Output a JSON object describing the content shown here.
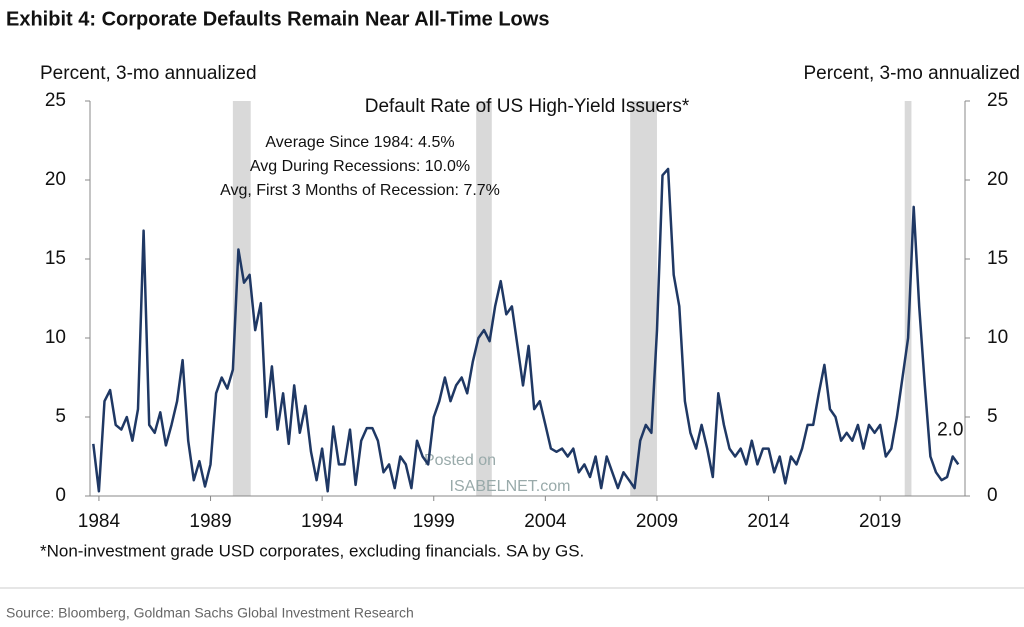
{
  "chart_data": {
    "type": "line",
    "title": "Exhibit 4: Corporate Defaults Remain Near All-Time Lows",
    "subtitle": "Default Rate of US High-Yield Issuers*",
    "y_label": "Percent, 3-mo annualized",
    "y2_label": "Percent, 3-mo annualized",
    "annotations": [
      "Average Since 1984: 4.5%",
      "Avg During Recessions: 10.0%",
      "Avg, First 3 Months of Recession: 7.7%"
    ],
    "end_label": "2.0",
    "footnote": "*Non-investment grade USD corporates, excluding financials. SA by GS.",
    "source": "Source: Bloomberg, Goldman Sachs Global Investment Research",
    "watermark": [
      "Posted on",
      "ISABELNET.com"
    ],
    "recessions": [
      [
        1990.0,
        1990.8
      ],
      [
        2000.9,
        2001.6
      ],
      [
        2007.8,
        2009.0
      ],
      [
        2020.1,
        2020.4
      ]
    ],
    "recession_color": "#d9d9d9",
    "xlim": [
      1983.6,
      2022.8
    ],
    "xticks": [
      1984,
      1989,
      1994,
      1999,
      2004,
      2009,
      2014,
      2019
    ],
    "ylim": [
      0,
      25
    ],
    "yticks": [
      0,
      5,
      10,
      15,
      20,
      25
    ],
    "y2lim": [
      0,
      25
    ],
    "y2ticks": [
      0,
      5,
      10,
      15,
      20,
      25
    ],
    "series": [
      {
        "name": "Default Rate of US High-Yield Issuers*",
        "color": "#1f3864",
        "x": [
          1983.75,
          1984.0,
          1984.25,
          1984.5,
          1984.75,
          1985.0,
          1985.25,
          1985.5,
          1985.75,
          1986.0,
          1986.25,
          1986.5,
          1986.75,
          1987.0,
          1987.25,
          1987.5,
          1987.75,
          1988.0,
          1988.25,
          1988.5,
          1988.75,
          1989.0,
          1989.25,
          1989.5,
          1989.75,
          1990.0,
          1990.25,
          1990.5,
          1990.75,
          1991.0,
          1991.25,
          1991.5,
          1991.75,
          1992.0,
          1992.25,
          1992.5,
          1992.75,
          1993.0,
          1993.25,
          1993.5,
          1993.75,
          1994.0,
          1994.25,
          1994.5,
          1994.75,
          1995.0,
          1995.25,
          1995.5,
          1995.75,
          1996.0,
          1996.25,
          1996.5,
          1996.75,
          1997.0,
          1997.25,
          1997.5,
          1997.75,
          1998.0,
          1998.25,
          1998.5,
          1998.75,
          1999.0,
          1999.25,
          1999.5,
          1999.75,
          2000.0,
          2000.25,
          2000.5,
          2000.75,
          2001.0,
          2001.25,
          2001.5,
          2001.75,
          2002.0,
          2002.25,
          2002.5,
          2002.75,
          2003.0,
          2003.25,
          2003.5,
          2003.75,
          2004.0,
          2004.25,
          2004.5,
          2004.75,
          2005.0,
          2005.25,
          2005.5,
          2005.75,
          2006.0,
          2006.25,
          2006.5,
          2006.75,
          2007.0,
          2007.25,
          2007.5,
          2007.75,
          2008.0,
          2008.25,
          2008.5,
          2008.75,
          2009.0,
          2009.25,
          2009.5,
          2009.75,
          2010.0,
          2010.25,
          2010.5,
          2010.75,
          2011.0,
          2011.25,
          2011.5,
          2011.75,
          2012.0,
          2012.25,
          2012.5,
          2012.75,
          2013.0,
          2013.25,
          2013.5,
          2013.75,
          2014.0,
          2014.25,
          2014.5,
          2014.75,
          2015.0,
          2015.25,
          2015.5,
          2015.75,
          2016.0,
          2016.25,
          2016.5,
          2016.75,
          2017.0,
          2017.25,
          2017.5,
          2017.75,
          2018.0,
          2018.25,
          2018.5,
          2018.75,
          2019.0,
          2019.25,
          2019.5,
          2019.75,
          2020.0,
          2020.25,
          2020.5,
          2020.75,
          2021.0,
          2021.25,
          2021.5,
          2021.75,
          2022.0,
          2022.25,
          2022.5
        ],
        "values": [
          3.3,
          0.3,
          6.0,
          6.7,
          4.5,
          4.2,
          5.0,
          3.5,
          5.5,
          16.8,
          4.5,
          4.0,
          5.3,
          3.2,
          4.5,
          6.0,
          8.6,
          3.5,
          1.0,
          2.2,
          0.6,
          2.0,
          6.5,
          7.5,
          6.8,
          8.0,
          15.6,
          13.5,
          14.0,
          10.5,
          12.2,
          5.0,
          8.2,
          4.2,
          6.5,
          3.3,
          7.0,
          4.0,
          5.7,
          2.8,
          1.0,
          3.0,
          0.3,
          4.4,
          2.0,
          2.0,
          4.2,
          0.7,
          3.5,
          4.3,
          4.3,
          3.5,
          1.5,
          2.0,
          0.5,
          2.5,
          2.0,
          0.5,
          3.5,
          2.5,
          2.0,
          5.0,
          6.0,
          7.5,
          6.0,
          7.0,
          7.5,
          6.5,
          8.5,
          10.0,
          10.5,
          9.8,
          12.0,
          13.6,
          11.5,
          12.0,
          9.5,
          7.0,
          9.5,
          5.5,
          6.0,
          4.5,
          3.0,
          2.8,
          3.0,
          2.5,
          3.0,
          1.5,
          2.0,
          1.2,
          2.5,
          0.5,
          2.5,
          1.5,
          0.5,
          1.5,
          1.0,
          0.5,
          3.5,
          4.5,
          4.0,
          10.5,
          20.3,
          20.7,
          14.0,
          12.0,
          6.0,
          4.0,
          3.0,
          4.5,
          3.0,
          1.2,
          6.5,
          4.5,
          3.0,
          2.5,
          3.0,
          2.0,
          3.5,
          2.0,
          3.0,
          3.0,
          1.5,
          2.5,
          0.8,
          2.5,
          2.0,
          3.0,
          4.5,
          4.5,
          6.5,
          8.3,
          5.5,
          5.0,
          3.5,
          4.0,
          3.5,
          4.5,
          3.0,
          4.5,
          4.0,
          4.5,
          2.5,
          3.0,
          5.0,
          7.5,
          10.0,
          18.3,
          12.0,
          7.0,
          2.5,
          1.5,
          1.0,
          1.2,
          2.5,
          2.0
        ]
      }
    ]
  }
}
